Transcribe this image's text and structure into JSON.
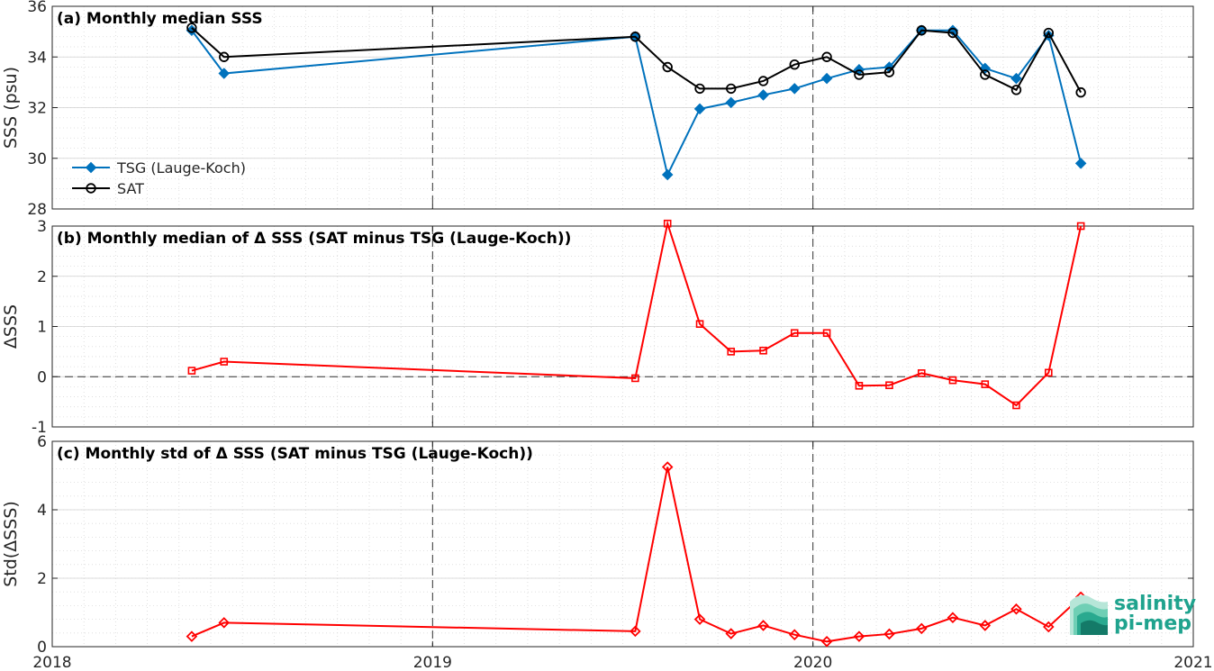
{
  "colors": {
    "tsg": "#0072BD",
    "sat": "#000000",
    "delta": "#FF0000",
    "logo": "#1fa38e"
  },
  "x_axis": {
    "ticks": [
      "2018",
      "2019",
      "2020",
      "2021"
    ]
  },
  "logo": {
    "line1": "salinity",
    "line2": "pi-mep"
  },
  "chart_data": [
    {
      "type": "line",
      "title": "(a) Monthly median SSS",
      "ylabel": "SSS (psu)",
      "ylim": [
        28,
        36
      ],
      "yticks": [
        "28",
        "30",
        "32",
        "34",
        "36"
      ],
      "grid": true,
      "legend_placement": "lower-left",
      "x": [
        "2018-05-15",
        "2018-06-15",
        "2019-07-15",
        "2019-08-15",
        "2019-09-15",
        "2019-10-15",
        "2019-11-15",
        "2019-12-15",
        "2020-01-15",
        "2020-02-15",
        "2020-03-15",
        "2020-04-15",
        "2020-05-15",
        "2020-06-15",
        "2020-07-15",
        "2020-08-15",
        "2020-09-15"
      ],
      "series": [
        {
          "name": "TSG (Lauge-Koch)",
          "marker": "diamond",
          "color": "#0072BD",
          "values": [
            35.05,
            33.35,
            34.8,
            29.35,
            31.95,
            32.2,
            32.5,
            32.75,
            33.15,
            33.5,
            33.6,
            35.05,
            35.05,
            33.55,
            33.15,
            34.85,
            29.8
          ]
        },
        {
          "name": "SAT",
          "marker": "circle",
          "color": "#000000",
          "values": [
            35.15,
            34.0,
            34.8,
            33.6,
            32.75,
            32.75,
            33.05,
            33.7,
            34.0,
            33.3,
            33.4,
            35.05,
            34.95,
            33.3,
            32.7,
            34.95,
            32.6
          ]
        }
      ]
    },
    {
      "type": "line",
      "title": "(b) Monthly median of Δ SSS (SAT minus TSG (Lauge-Koch))",
      "ylabel": "ΔSSS",
      "ylim": [
        -1,
        3
      ],
      "yticks": [
        "-1",
        "0",
        "1",
        "2",
        "3"
      ],
      "grid": true,
      "reference_line": 0,
      "x": [
        "2018-05-15",
        "2018-06-15",
        "2019-07-15",
        "2019-08-15",
        "2019-09-15",
        "2019-10-15",
        "2019-11-15",
        "2019-12-15",
        "2020-01-15",
        "2020-02-15",
        "2020-03-15",
        "2020-04-15",
        "2020-05-15",
        "2020-06-15",
        "2020-07-15",
        "2020-08-15",
        "2020-09-15"
      ],
      "series": [
        {
          "marker": "square",
          "color": "#FF0000",
          "values": [
            0.12,
            0.3,
            -0.03,
            3.05,
            1.05,
            0.5,
            0.52,
            0.87,
            0.87,
            -0.18,
            -0.17,
            0.07,
            -0.07,
            -0.15,
            -0.57,
            0.08,
            3.0
          ]
        }
      ]
    },
    {
      "type": "line",
      "title": "(c) Monthly std of Δ SSS (SAT minus TSG (Lauge-Koch))",
      "ylabel": "Std(ΔSSS)",
      "ylim": [
        0,
        6
      ],
      "yticks": [
        "0",
        "2",
        "4",
        "6"
      ],
      "grid": true,
      "x": [
        "2018-05-15",
        "2018-06-15",
        "2019-07-15",
        "2019-08-15",
        "2019-09-15",
        "2019-10-15",
        "2019-11-15",
        "2019-12-15",
        "2020-01-15",
        "2020-02-15",
        "2020-03-15",
        "2020-04-15",
        "2020-05-15",
        "2020-06-15",
        "2020-07-15",
        "2020-08-15",
        "2020-09-15"
      ],
      "series": [
        {
          "marker": "diamond",
          "color": "#FF0000",
          "values": [
            0.3,
            0.7,
            0.45,
            5.25,
            0.8,
            0.38,
            0.62,
            0.35,
            0.15,
            0.3,
            0.37,
            0.53,
            0.85,
            0.62,
            1.1,
            0.58,
            1.45
          ]
        }
      ]
    }
  ]
}
